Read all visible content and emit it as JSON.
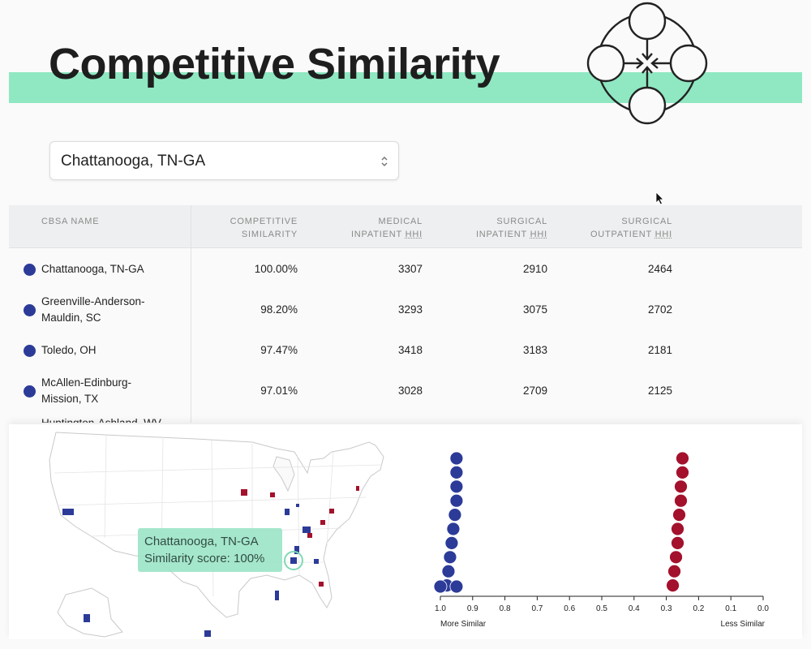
{
  "header": {
    "title": "Competitive Similarity",
    "logo_icon": "converging-circles-icon",
    "band_color": "#8fe8c2"
  },
  "selector": {
    "value": "Chattanooga, TN-GA",
    "icon": "chevron-up-down-icon"
  },
  "table": {
    "columns": {
      "name": [
        "CBSA NAME"
      ],
      "similarity": [
        "COMPETITIVE",
        "SIMILARITY"
      ],
      "med": [
        "MEDICAL",
        "INPATIENT",
        "HHI"
      ],
      "surg_in": [
        "SURGICAL",
        "INPATIENT",
        "HHI"
      ],
      "surg_out": [
        "SURGICAL",
        "OUTPATIENT",
        "HHI"
      ]
    },
    "rows": [
      {
        "name": [
          "Chattanooga, TN-GA"
        ],
        "similarity": "100.00%",
        "med": "3307",
        "surg_in": "2910",
        "surg_out": "2464"
      },
      {
        "name": [
          "Greenville-Anderson-",
          "Mauldin, SC"
        ],
        "similarity": "98.20%",
        "med": "3293",
        "surg_in": "3075",
        "surg_out": "2702"
      },
      {
        "name": [
          "Toledo, OH"
        ],
        "similarity": "97.47%",
        "med": "3418",
        "surg_in": "3183",
        "surg_out": "2181"
      },
      {
        "name": [
          "McAllen-Edinburg-",
          "Mission, TX"
        ],
        "similarity": "97.01%",
        "med": "3028",
        "surg_in": "2709",
        "surg_out": "2125"
      },
      {
        "name": [
          "Huntington-Ashland, WV-"
        ],
        "similarity": "",
        "med": "",
        "surg_in": "",
        "surg_out": ""
      }
    ],
    "dot_color": "#2c3b98"
  },
  "map": {
    "tooltip_line1": "Chattanooga, TN-GA",
    "tooltip_line2": "Similarity score: 100%",
    "similar_color": "#2c3b98",
    "dissimilar_color": "#a3112c"
  },
  "chart_data": {
    "type": "scatter",
    "xlim": [
      1.0,
      0.0
    ],
    "x_ticks": [
      "1.0",
      "0.9",
      "0.8",
      "0.7",
      "0.6",
      "0.5",
      "0.4",
      "0.3",
      "0.2",
      "0.1",
      "0.0"
    ],
    "left_label": "More Similar",
    "right_label": "Less Similar",
    "series": [
      {
        "color": "#2c3b98",
        "values": [
          0.95,
          0.95,
          0.95,
          0.95,
          0.955,
          0.96,
          0.965,
          0.97,
          0.975,
          0.98,
          0.95,
          1.0
        ]
      },
      {
        "color": "#a3112c",
        "values": [
          0.25,
          0.25,
          0.255,
          0.255,
          0.26,
          0.265,
          0.265,
          0.27,
          0.275,
          0.28
        ]
      }
    ]
  }
}
